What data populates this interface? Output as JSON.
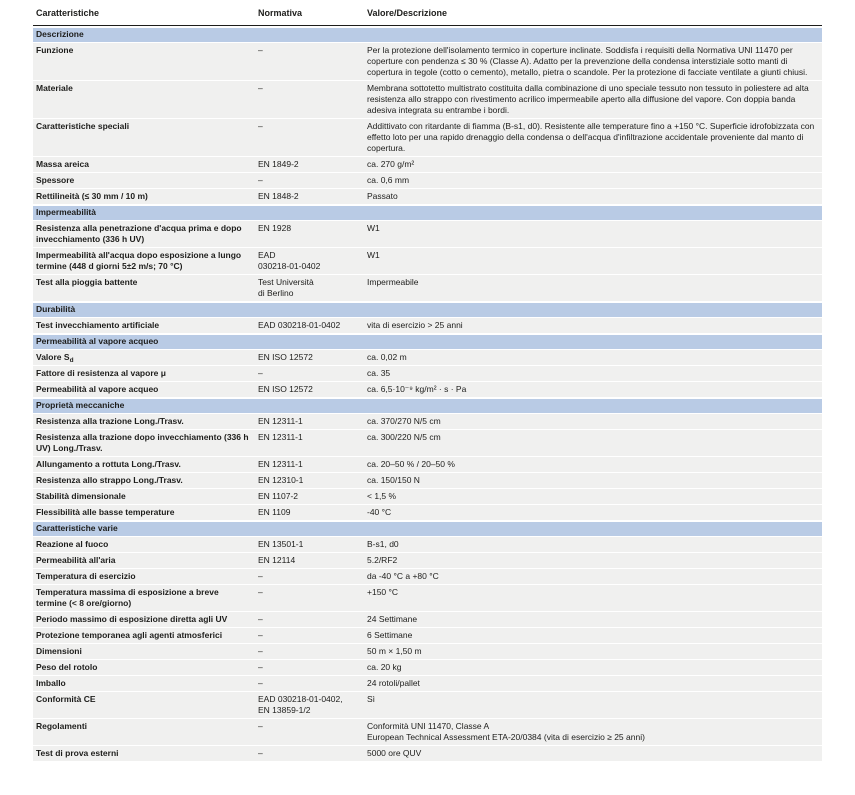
{
  "theme": {
    "section_bg": "#b9cbe5",
    "row_bg": "#f0f0ef",
    "text": "#1d1d1b",
    "header_border": "#1d1d1b"
  },
  "table": {
    "columns": [
      "Caratteristiche",
      "Normativa",
      "Valore/Descrizione"
    ],
    "rows": [
      {
        "type": "section",
        "label": "Descrizione"
      },
      {
        "type": "data",
        "characteristic": "Funzione",
        "normative": "–",
        "value": "Per la protezione dell'isolamento termico in coperture inclinate. Soddisfa i requisiti della Normativa UNI 11470 per coperture con pendenza ≤ 30 % (Classe A). Adatto per la prevenzione della condensa interstiziale sotto manti di copertura in tegole (cotto o cemento), metallo, pietra o scandole. Per la protezione di facciate ventilate a giunti chiusi."
      },
      {
        "type": "data",
        "characteristic": "Materiale",
        "normative": "–",
        "value": "Membrana sottotetto multistrato costituita dalla combinazione di uno speciale tessuto non tessuto in poliestere ad alta resistenza allo strappo con rivestimento acrilico impermeabile aperto alla diffusione del vapore. Con doppia banda adesiva integrata su entrambe i bordi."
      },
      {
        "type": "data",
        "characteristic": "Caratteristiche speciali",
        "normative": "–",
        "value": "Addittivato con ritardante di fiamma (B-s1, d0). Resistente alle temperature fino a +150 °C. Superficie idrofobizzata con effetto loto per una rapido drenaggio della condensa o dell'acqua d'infiltrazione accidentale proveniente dal manto di copertura."
      },
      {
        "type": "data",
        "characteristic": "Massa areica",
        "normative": "EN 1849-2",
        "value": "ca. 270 g/m²"
      },
      {
        "type": "data",
        "characteristic": "Spessore",
        "normative": "–",
        "value": "ca. 0,6 mm"
      },
      {
        "type": "data",
        "characteristic": "Rettilineità (≤ 30 mm / 10 m)",
        "normative": "EN 1848-2",
        "value": "Passato"
      },
      {
        "type": "section",
        "label": "Impermeabilità"
      },
      {
        "type": "data",
        "characteristic": "Resistenza alla penetrazione d'acqua prima e dopo invecchiamento (336 h UV)",
        "normative": "EN 1928",
        "value": "W1"
      },
      {
        "type": "data",
        "characteristic": "Impermeabilità all'acqua dopo esposizione a lungo termine (448 d giorni 5±2 m/s; 70 °C)",
        "normative": {
          "lines": [
            "EAD",
            "030218-01-0402"
          ]
        },
        "value": "W1"
      },
      {
        "type": "data",
        "characteristic": "Test alla pioggia battente",
        "normative": {
          "lines": [
            "Test Università",
            "di Berlino"
          ]
        },
        "value": "Impermeabile"
      },
      {
        "type": "section",
        "label": "Durabilità"
      },
      {
        "type": "data",
        "characteristic": "Test invecchiamento artificiale",
        "normative": "EAD 030218-01-0402",
        "value": "vita di esercizio > 25 anni"
      },
      {
        "type": "section",
        "label": "Permeabilità al vapore acqueo"
      },
      {
        "type": "data",
        "characteristic": {
          "parts": [
            "Valore S",
            {
              "sub": "d"
            }
          ]
        },
        "normative": "EN ISO 12572",
        "value": "ca. 0,02 m"
      },
      {
        "type": "data",
        "characteristic": "Fattore di resistenza al vapore μ",
        "normative": "–",
        "value": "ca. 35"
      },
      {
        "type": "data",
        "characteristic": "Permeabilità al vapore acqueo",
        "normative": "EN ISO 12572",
        "value": "ca. 6,5·10⁻⁹ kg/m² · s · Pa"
      },
      {
        "type": "section",
        "label": "Proprietà meccaniche"
      },
      {
        "type": "data",
        "characteristic": "Resistenza alla trazione Long./Trasv.",
        "normative": "EN 12311-1",
        "value": "ca. 370/270 N/5 cm"
      },
      {
        "type": "data",
        "characteristic": "Resistenza alla trazione dopo invecchiamento (336 h UV) Long./Trasv.",
        "normative": "EN 12311-1",
        "value": "ca. 300/220 N/5 cm"
      },
      {
        "type": "data",
        "characteristic": "Allungamento a rottuta Long./Trasv.",
        "normative": "EN 12311-1",
        "value": "ca. 20–50 % / 20–50 %"
      },
      {
        "type": "data",
        "characteristic": "Resistenza allo strappo Long./Trasv.",
        "normative": "EN 12310-1",
        "value": "ca. 150/150 N"
      },
      {
        "type": "data",
        "characteristic": "Stabilità dimensionale",
        "normative": "EN 1107-2",
        "value": "< 1,5 %"
      },
      {
        "type": "data",
        "characteristic": "Flessibilità alle basse temperature",
        "normative": "EN 1109",
        "value": "-40 °C"
      },
      {
        "type": "section",
        "label": "Caratteristiche varie"
      },
      {
        "type": "data",
        "characteristic": "Reazione al fuoco",
        "normative": "EN 13501-1",
        "value": "B-s1, d0"
      },
      {
        "type": "data",
        "characteristic": "Permeabilità all'aria",
        "normative": "EN 12114",
        "value": "5.2/RF2"
      },
      {
        "type": "data",
        "characteristic": "Temperatura di esercizio",
        "normative": "–",
        "value": "da -40 °C a +80 °C"
      },
      {
        "type": "data",
        "characteristic": "Temperatura massima di esposizione a breve termine (< 8 ore/giorno)",
        "normative": "–",
        "value": "+150 °C"
      },
      {
        "type": "data",
        "characteristic": "Periodo massimo di esposizione diretta agli UV",
        "normative": "–",
        "value": "24 Settimane"
      },
      {
        "type": "data",
        "characteristic": "Protezione temporanea agli agenti atmosferici",
        "normative": "–",
        "value": "6 Settimane"
      },
      {
        "type": "data",
        "characteristic": "Dimensioni",
        "normative": "–",
        "value": "50 m × 1,50 m"
      },
      {
        "type": "data",
        "characteristic": "Peso del rotolo",
        "normative": "–",
        "value": "ca. 20 kg"
      },
      {
        "type": "data",
        "characteristic": "Imballo",
        "normative": "–",
        "value": "24 rotoli/pallet"
      },
      {
        "type": "data",
        "characteristic": "Conformità CE",
        "normative": {
          "lines": [
            "EAD 030218-01-0402,",
            "EN 13859-1/2"
          ]
        },
        "value": "Sì"
      },
      {
        "type": "data",
        "characteristic": "Regolamenti",
        "normative": "–",
        "value": {
          "lines": [
            "Conformità UNI 11470, Classe A",
            "European Technical Assessment ETA-20/0384 (vita di esercizio ≥ 25 anni)"
          ]
        }
      },
      {
        "type": "data",
        "characteristic": "Test di prova esterni",
        "normative": "–",
        "value": "5000 ore QUV"
      }
    ]
  }
}
